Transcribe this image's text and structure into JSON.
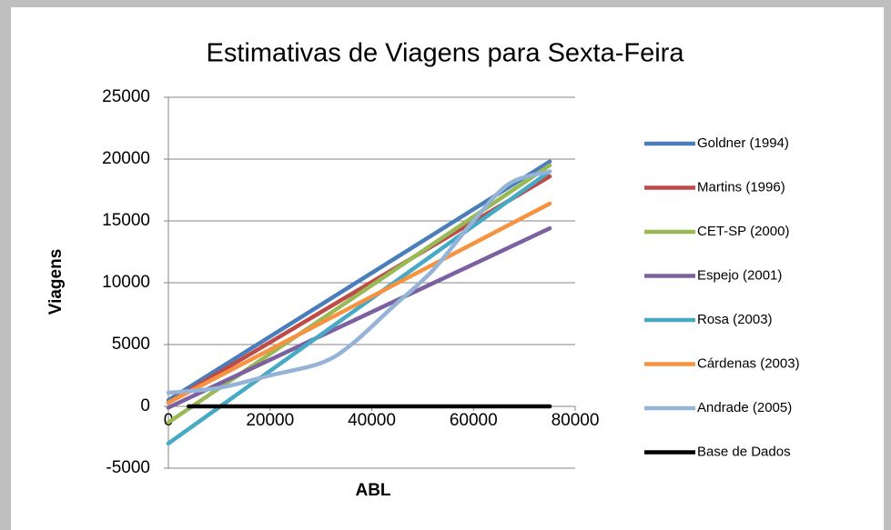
{
  "chart_data": {
    "type": "line",
    "title": "Estimativas de Viagens para Sexta-Feira",
    "x_label": "ABL",
    "y_label": "Viagens",
    "xlim": [
      0,
      80000
    ],
    "xticks": [
      0,
      20000,
      40000,
      60000,
      80000
    ],
    "ylim": [
      -5000,
      25000
    ],
    "yticks": [
      -5000,
      0,
      5000,
      10000,
      15000,
      20000,
      25000
    ],
    "grid": true,
    "legend": "right",
    "series": [
      {
        "name": "Goldner (1994)",
        "color": "#4a7ebb",
        "x": [
          0,
          75000
        ],
        "values": [
          500,
          19800
        ]
      },
      {
        "name": "Martins (1996)",
        "color": "#be4b48",
        "x": [
          0,
          75000
        ],
        "values": [
          300,
          18600
        ]
      },
      {
        "name": "CET-SP (2000)",
        "color": "#98b954",
        "x": [
          0,
          75000
        ],
        "values": [
          -1300,
          19500
        ]
      },
      {
        "name": "Espejo (2001)",
        "color": "#7d60a0",
        "x": [
          0,
          75000
        ],
        "values": [
          -100,
          14400
        ]
      },
      {
        "name": "Rosa (2003)",
        "color": "#46aac5",
        "x": [
          0,
          75000
        ],
        "values": [
          -3000,
          19000
        ]
      },
      {
        "name": "Cárdenas (2003)",
        "color": "#f69240",
        "x": [
          0,
          75000
        ],
        "values": [
          300,
          16400
        ]
      },
      {
        "name": "Andrade (2005)",
        "color": "#95b3d7",
        "x": [
          0,
          10000,
          20000,
          30000,
          36000,
          44000,
          52000,
          60000,
          67000,
          75000
        ],
        "values": [
          1100,
          1500,
          2500,
          3500,
          5000,
          8000,
          11000,
          15000,
          18000,
          19000
        ]
      },
      {
        "name": "Base de Dados",
        "color": "#000000",
        "x": [
          4000,
          75000
        ],
        "values": [
          0,
          0
        ]
      }
    ]
  }
}
